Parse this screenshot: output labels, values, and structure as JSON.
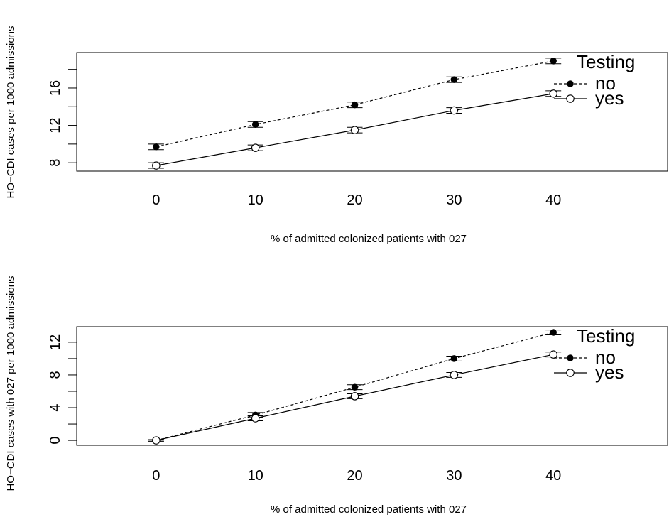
{
  "chart_data": [
    {
      "type": "line",
      "xlabel": "% of admitted colonized patients with 027",
      "ylabel": "HO−CDI cases per 1000 admissions",
      "x": [
        0,
        10,
        20,
        30,
        40
      ],
      "xticks": [
        "0",
        "10",
        "20",
        "30",
        "40"
      ],
      "xlim": [
        -8,
        51.5
      ],
      "yticks": [
        8,
        12,
        16
      ],
      "ylim": [
        7.1,
        19.8
      ],
      "legend": {
        "title": "Testing",
        "position": "top-right"
      },
      "series": [
        {
          "name": "no",
          "line": "dashed",
          "marker": "filled",
          "values": [
            9.7,
            12.1,
            14.2,
            16.9,
            18.9
          ],
          "err": [
            0.3,
            0.3,
            0.3,
            0.3,
            0.3
          ]
        },
        {
          "name": "yes",
          "line": "solid",
          "marker": "open",
          "values": [
            7.7,
            9.6,
            11.5,
            13.6,
            15.4
          ],
          "err": [
            0.3,
            0.3,
            0.3,
            0.3,
            0.3
          ]
        }
      ]
    },
    {
      "type": "line",
      "xlabel": "% of admitted colonized patients with 027",
      "ylabel": "HO−CDI cases with 027 per 1000 admissions",
      "x": [
        0,
        10,
        20,
        30,
        40
      ],
      "xticks": [
        "0",
        "10",
        "20",
        "30",
        "40"
      ],
      "xlim": [
        -8,
        51.5
      ],
      "yticks": [
        0,
        4,
        8,
        12
      ],
      "ylim": [
        -0.6,
        13.9
      ],
      "legend": {
        "title": "Testing",
        "position": "top-right"
      },
      "series": [
        {
          "name": "no",
          "line": "dashed",
          "marker": "filled",
          "values": [
            0.0,
            3.1,
            6.5,
            10.0,
            13.2
          ],
          "err": [
            0.1,
            0.3,
            0.3,
            0.3,
            0.3
          ]
        },
        {
          "name": "yes",
          "line": "solid",
          "marker": "open",
          "values": [
            0.0,
            2.7,
            5.4,
            8.0,
            10.5
          ],
          "err": [
            0.1,
            0.3,
            0.3,
            0.3,
            0.3
          ]
        }
      ]
    }
  ]
}
